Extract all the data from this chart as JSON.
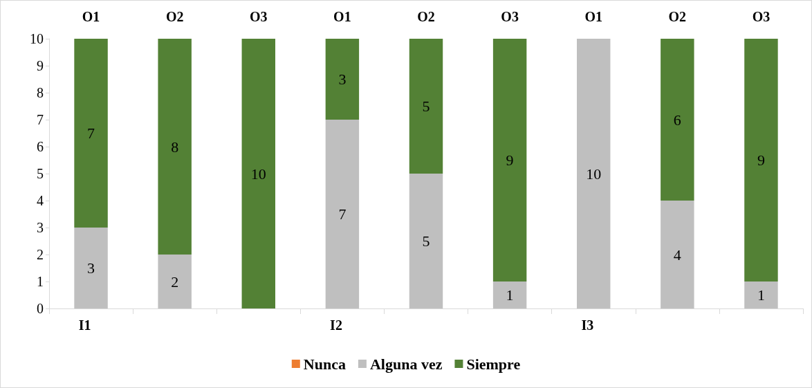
{
  "chart_data": {
    "type": "bar",
    "stacked": true,
    "categories": [
      "O1",
      "O2",
      "O3",
      "O1",
      "O2",
      "O3",
      "O1",
      "O2",
      "O3"
    ],
    "annotations": [
      "I1",
      "I2",
      "I3"
    ],
    "series": [
      {
        "name": "Nunca",
        "color": "#ed7d31",
        "values": [
          0,
          0,
          0,
          0,
          0,
          0,
          0,
          0,
          0
        ],
        "value_labels": [
          null,
          null,
          null,
          null,
          null,
          null,
          null,
          null,
          null
        ]
      },
      {
        "name": "Alguna vez",
        "color": "#bfbfbf",
        "values": [
          3,
          2,
          0,
          7,
          5,
          1,
          10,
          4,
          1
        ],
        "value_labels": [
          "3",
          "2",
          null,
          "7",
          "5",
          "1",
          "10",
          "4",
          "1"
        ]
      },
      {
        "name": "Siempre",
        "color": "#538135",
        "values": [
          7,
          8,
          10,
          3,
          5,
          9,
          0,
          6,
          9
        ],
        "value_labels": [
          "7",
          "8",
          "10",
          "3",
          "5",
          "9",
          null,
          "6",
          "9"
        ]
      }
    ],
    "ylim": [
      0,
      10
    ],
    "yticks": [
      0,
      1,
      2,
      3,
      4,
      5,
      6,
      7,
      8,
      9,
      10
    ],
    "grid": false,
    "legend": "bottom"
  }
}
